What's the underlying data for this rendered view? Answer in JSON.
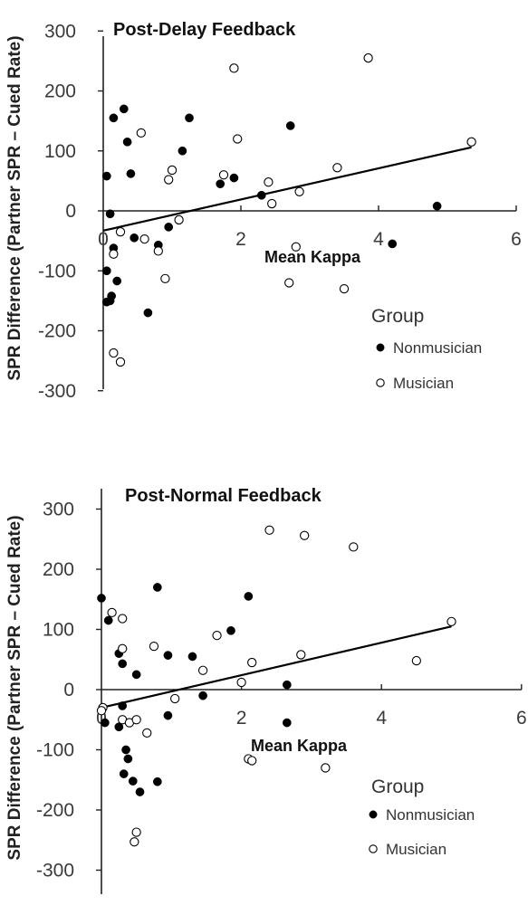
{
  "chart_data": [
    {
      "type": "scatter",
      "title": "Post-Delay  Feedback",
      "xlabel": "Mean Kappa",
      "ylabel": "SPR Difference (Partner SPR – Cued Rate)",
      "xlim": [
        0,
        6
      ],
      "ylim": [
        -300,
        300
      ],
      "x_ticks": [
        "0",
        "2",
        "4",
        "6"
      ],
      "y_ticks": [
        "300",
        "200",
        "100",
        "0",
        "-100",
        "-200",
        "-300"
      ],
      "legend_title": "Group",
      "legend_position": "bottom-right",
      "trendline": {
        "x": [
          0,
          5.35
        ],
        "y": [
          -33,
          106
        ]
      },
      "series": [
        {
          "name": "Nonmusician",
          "marker": "filled",
          "color": "#000000",
          "points": [
            [
              0.05,
              58
            ],
            [
              0.1,
              -5
            ],
            [
              0.15,
              155
            ],
            [
              0.3,
              170
            ],
            [
              0.35,
              115
            ],
            [
              0.4,
              62
            ],
            [
              0.15,
              -62
            ],
            [
              0.45,
              -45
            ],
            [
              0.05,
              -100
            ],
            [
              0.2,
              -117
            ],
            [
              0.1,
              -150
            ],
            [
              0.05,
              -152
            ],
            [
              0.12,
              -142
            ],
            [
              0.65,
              -170
            ],
            [
              0.8,
              -57
            ],
            [
              0.95,
              -27
            ],
            [
              1.15,
              100
            ],
            [
              1.25,
              155
            ],
            [
              1.7,
              45
            ],
            [
              1.9,
              55
            ],
            [
              2.3,
              26
            ],
            [
              2.72,
              142
            ],
            [
              4.85,
              8
            ],
            [
              4.2,
              -55
            ]
          ]
        },
        {
          "name": "Musician",
          "marker": "hollow",
          "color": "#000000",
          "points": [
            [
              0.55,
              130
            ],
            [
              0.95,
              52
            ],
            [
              1.0,
              68
            ],
            [
              1.1,
              -15
            ],
            [
              0.15,
              -72
            ],
            [
              0.25,
              -35
            ],
            [
              0.6,
              -47
            ],
            [
              0.8,
              -67
            ],
            [
              0.9,
              -113
            ],
            [
              0.15,
              -237
            ],
            [
              0.25,
              -252
            ],
            [
              1.75,
              60
            ],
            [
              1.95,
              120
            ],
            [
              1.9,
              238
            ],
            [
              2.4,
              48
            ],
            [
              2.45,
              12
            ],
            [
              2.85,
              32
            ],
            [
              2.8,
              -60
            ],
            [
              2.7,
              -120
            ],
            [
              3.4,
              72
            ],
            [
              3.5,
              -130
            ],
            [
              3.85,
              255
            ],
            [
              5.35,
              115
            ]
          ]
        }
      ]
    },
    {
      "type": "scatter",
      "title": "Post-Normal  Feedback",
      "xlabel": "Mean Kappa",
      "ylabel": "SPR Difference (Partner SPR – Cued Rate)",
      "xlim": [
        0,
        6
      ],
      "ylim": [
        -300,
        300
      ],
      "x_ticks": [
        "0",
        "2",
        "4",
        "6"
      ],
      "y_ticks": [
        "300",
        "200",
        "100",
        "0",
        "-100",
        "-200",
        "-300"
      ],
      "legend_title": "Group",
      "legend_position": "bottom-right",
      "trendline": {
        "x": [
          0,
          5.0
        ],
        "y": [
          -30,
          105
        ]
      },
      "series": [
        {
          "name": "Nonmusician",
          "marker": "filled",
          "color": "#000000",
          "points": [
            [
              0.0,
              152
            ],
            [
              0.1,
              115
            ],
            [
              0.25,
              60
            ],
            [
              0.3,
              43
            ],
            [
              0.5,
              25
            ],
            [
              0.3,
              -27
            ],
            [
              0.05,
              -55
            ],
            [
              0.25,
              -62
            ],
            [
              0.35,
              -100
            ],
            [
              0.38,
              -115
            ],
            [
              0.32,
              -140
            ],
            [
              0.45,
              -152
            ],
            [
              0.55,
              -170
            ],
            [
              0.8,
              -153
            ],
            [
              0.8,
              170
            ],
            [
              0.95,
              57
            ],
            [
              1.3,
              55
            ],
            [
              0.95,
              -43
            ],
            [
              1.45,
              -10
            ],
            [
              1.85,
              98
            ],
            [
              2.1,
              155
            ],
            [
              2.65,
              8
            ],
            [
              2.65,
              -55
            ]
          ]
        },
        {
          "name": "Musician",
          "marker": "hollow",
          "color": "#000000",
          "points": [
            [
              0.15,
              128
            ],
            [
              0.3,
              118
            ],
            [
              0.3,
              68
            ],
            [
              0.02,
              -30
            ],
            [
              0.0,
              -35
            ],
            [
              0.3,
              -50
            ],
            [
              0.4,
              -55
            ],
            [
              0.5,
              -50
            ],
            [
              0.65,
              -72
            ],
            [
              0.75,
              72
            ],
            [
              1.05,
              -15
            ],
            [
              1.45,
              32
            ],
            [
              1.65,
              90
            ],
            [
              2.0,
              12
            ],
            [
              2.15,
              45
            ],
            [
              2.1,
              -115
            ],
            [
              2.15,
              -118
            ],
            [
              2.4,
              265
            ],
            [
              2.9,
              256
            ],
            [
              2.85,
              58
            ],
            [
              3.2,
              -130
            ],
            [
              3.6,
              237
            ],
            [
              4.5,
              48
            ],
            [
              5.0,
              113
            ],
            [
              0.5,
              -237
            ],
            [
              0.47,
              -253
            ]
          ]
        }
      ]
    }
  ]
}
